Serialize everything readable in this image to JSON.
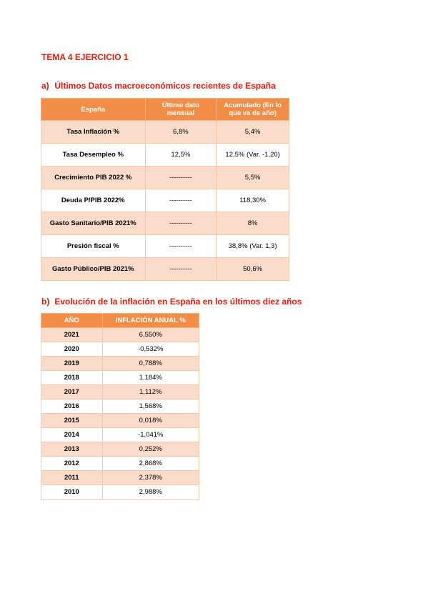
{
  "title": "TEMA 4 EJERCICIO 1",
  "section_a": {
    "letter": "a)",
    "heading": "Últimos Datos macroeconómicos recientes de España",
    "headers": [
      "España",
      "Último dato mensual",
      "Acumulado (En lo que va de año)"
    ],
    "rows": [
      [
        "Tasa Inflación %",
        "6,8%",
        "5,4%"
      ],
      [
        "Tasa Desempleo %",
        "12,5%",
        "12,5% (Var. -1,20)"
      ],
      [
        "Crecimiento PIB 2022 %",
        "----------",
        "5,5%"
      ],
      [
        "Deuda P/PIB 2022%",
        "----------",
        "118,30%"
      ],
      [
        "Gasto Sanitario/PIB 2021%",
        "----------",
        "8%"
      ],
      [
        "Presión fiscal %",
        "----------",
        "38,8% (Var. 1,3)"
      ],
      [
        "Gasto Público/PIB 2021%",
        "----------",
        "50,6%"
      ]
    ]
  },
  "section_b": {
    "letter": "b)",
    "heading": "Evolución de la inflación en España en los últimos diez años",
    "headers": [
      "AÑO",
      "INFLACIÓN ANUAL %"
    ],
    "rows": [
      [
        "2021",
        "6,550%"
      ],
      [
        "2020",
        "-0,532%"
      ],
      [
        "2019",
        "0,788%"
      ],
      [
        "2018",
        "1,184%"
      ],
      [
        "2017",
        "1,112%"
      ],
      [
        "2016",
        "1,568%"
      ],
      [
        "2015",
        "0,018%"
      ],
      [
        "2014",
        "-1,041%"
      ],
      [
        "2013",
        "0,252%"
      ],
      [
        "2012",
        "2,868%"
      ],
      [
        "2011",
        "2,378%"
      ],
      [
        "2010",
        "2,988%"
      ]
    ]
  }
}
